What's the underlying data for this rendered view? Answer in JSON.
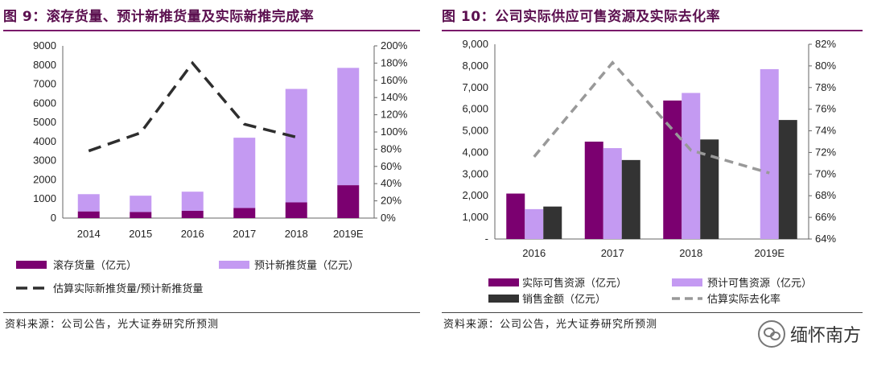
{
  "figure1": {
    "title": "图 9：滚存货量、预计新推货量及实际新推完成率",
    "source": "资料来源：公司公告，光大证券研究所预测",
    "legend": {
      "stock": "滚存货量（亿元）",
      "new": "预计新推货量（亿元）",
      "ratio": "估算实际新推货量/预计新推货量"
    },
    "colors": {
      "stock": "#7b0070",
      "new": "#c49af2",
      "ratio": "#2e2e2e"
    },
    "chart_data": {
      "type": "bar",
      "stacked": true,
      "categories": [
        "2014",
        "2015",
        "2016",
        "2017",
        "2018",
        "2019E"
      ],
      "series": [
        {
          "name": "滚存货量（亿元）",
          "values": [
            350,
            320,
            380,
            530,
            820,
            1720
          ]
        },
        {
          "name": "预计新推货量（亿元）",
          "values": [
            900,
            850,
            1000,
            3670,
            5930,
            6130
          ]
        },
        {
          "name": "估算实际新推货量/预计新推货量",
          "type": "line",
          "axis": "right",
          "values": [
            0.78,
            0.99,
            1.8,
            1.09,
            0.94,
            null
          ]
        }
      ],
      "ylim": [
        0,
        9000
      ],
      "yticks": [
        "0",
        "1000",
        "2000",
        "3000",
        "4000",
        "5000",
        "6000",
        "7000",
        "8000",
        "9000"
      ],
      "y2lim": [
        0,
        2.0
      ],
      "y2ticks": [
        "0%",
        "20%",
        "40%",
        "60%",
        "80%",
        "100%",
        "120%",
        "140%",
        "160%",
        "180%",
        "200%"
      ],
      "legend_position": "bottom"
    }
  },
  "figure2": {
    "title": "图 10：公司实际供应可售资源及实际去化率",
    "source": "资料来源：公司公告，光大证券研究所预测",
    "legend": {
      "actual": "实际可售资源（亿元）",
      "planned": "预计可售资源（亿元）",
      "sales": "销售金额（亿元）",
      "rate": "估算实际去化率"
    },
    "colors": {
      "actual": "#7b0070",
      "planned": "#c49af2",
      "sales": "#333333",
      "rate": "#999999"
    },
    "chart_data": {
      "type": "bar",
      "categories": [
        "2016",
        "2017",
        "2018",
        "2019E"
      ],
      "series": [
        {
          "name": "实际可售资源（亿元）",
          "values": [
            2100,
            4500,
            6400,
            null
          ]
        },
        {
          "name": "预计可售资源（亿元）",
          "values": [
            1380,
            4200,
            6750,
            7850
          ]
        },
        {
          "name": "销售金额（亿元）",
          "values": [
            1500,
            3650,
            4600,
            5500
          ]
        },
        {
          "name": "估算实际去化率",
          "type": "line",
          "axis": "right",
          "values": [
            71.6,
            80.3,
            72.2,
            70.1
          ]
        }
      ],
      "ylim": [
        0,
        9000
      ],
      "yticks": [
        "-",
        "1,000",
        "2,000",
        "3,000",
        "4,000",
        "5,000",
        "6,000",
        "7,000",
        "8,000",
        "9,000"
      ],
      "y2lim": [
        64,
        82
      ],
      "y2ticks": [
        "64%",
        "66%",
        "68%",
        "70%",
        "72%",
        "74%",
        "76%",
        "78%",
        "80%",
        "82%"
      ],
      "legend_position": "bottom"
    }
  },
  "watermark": "缅怀南方"
}
